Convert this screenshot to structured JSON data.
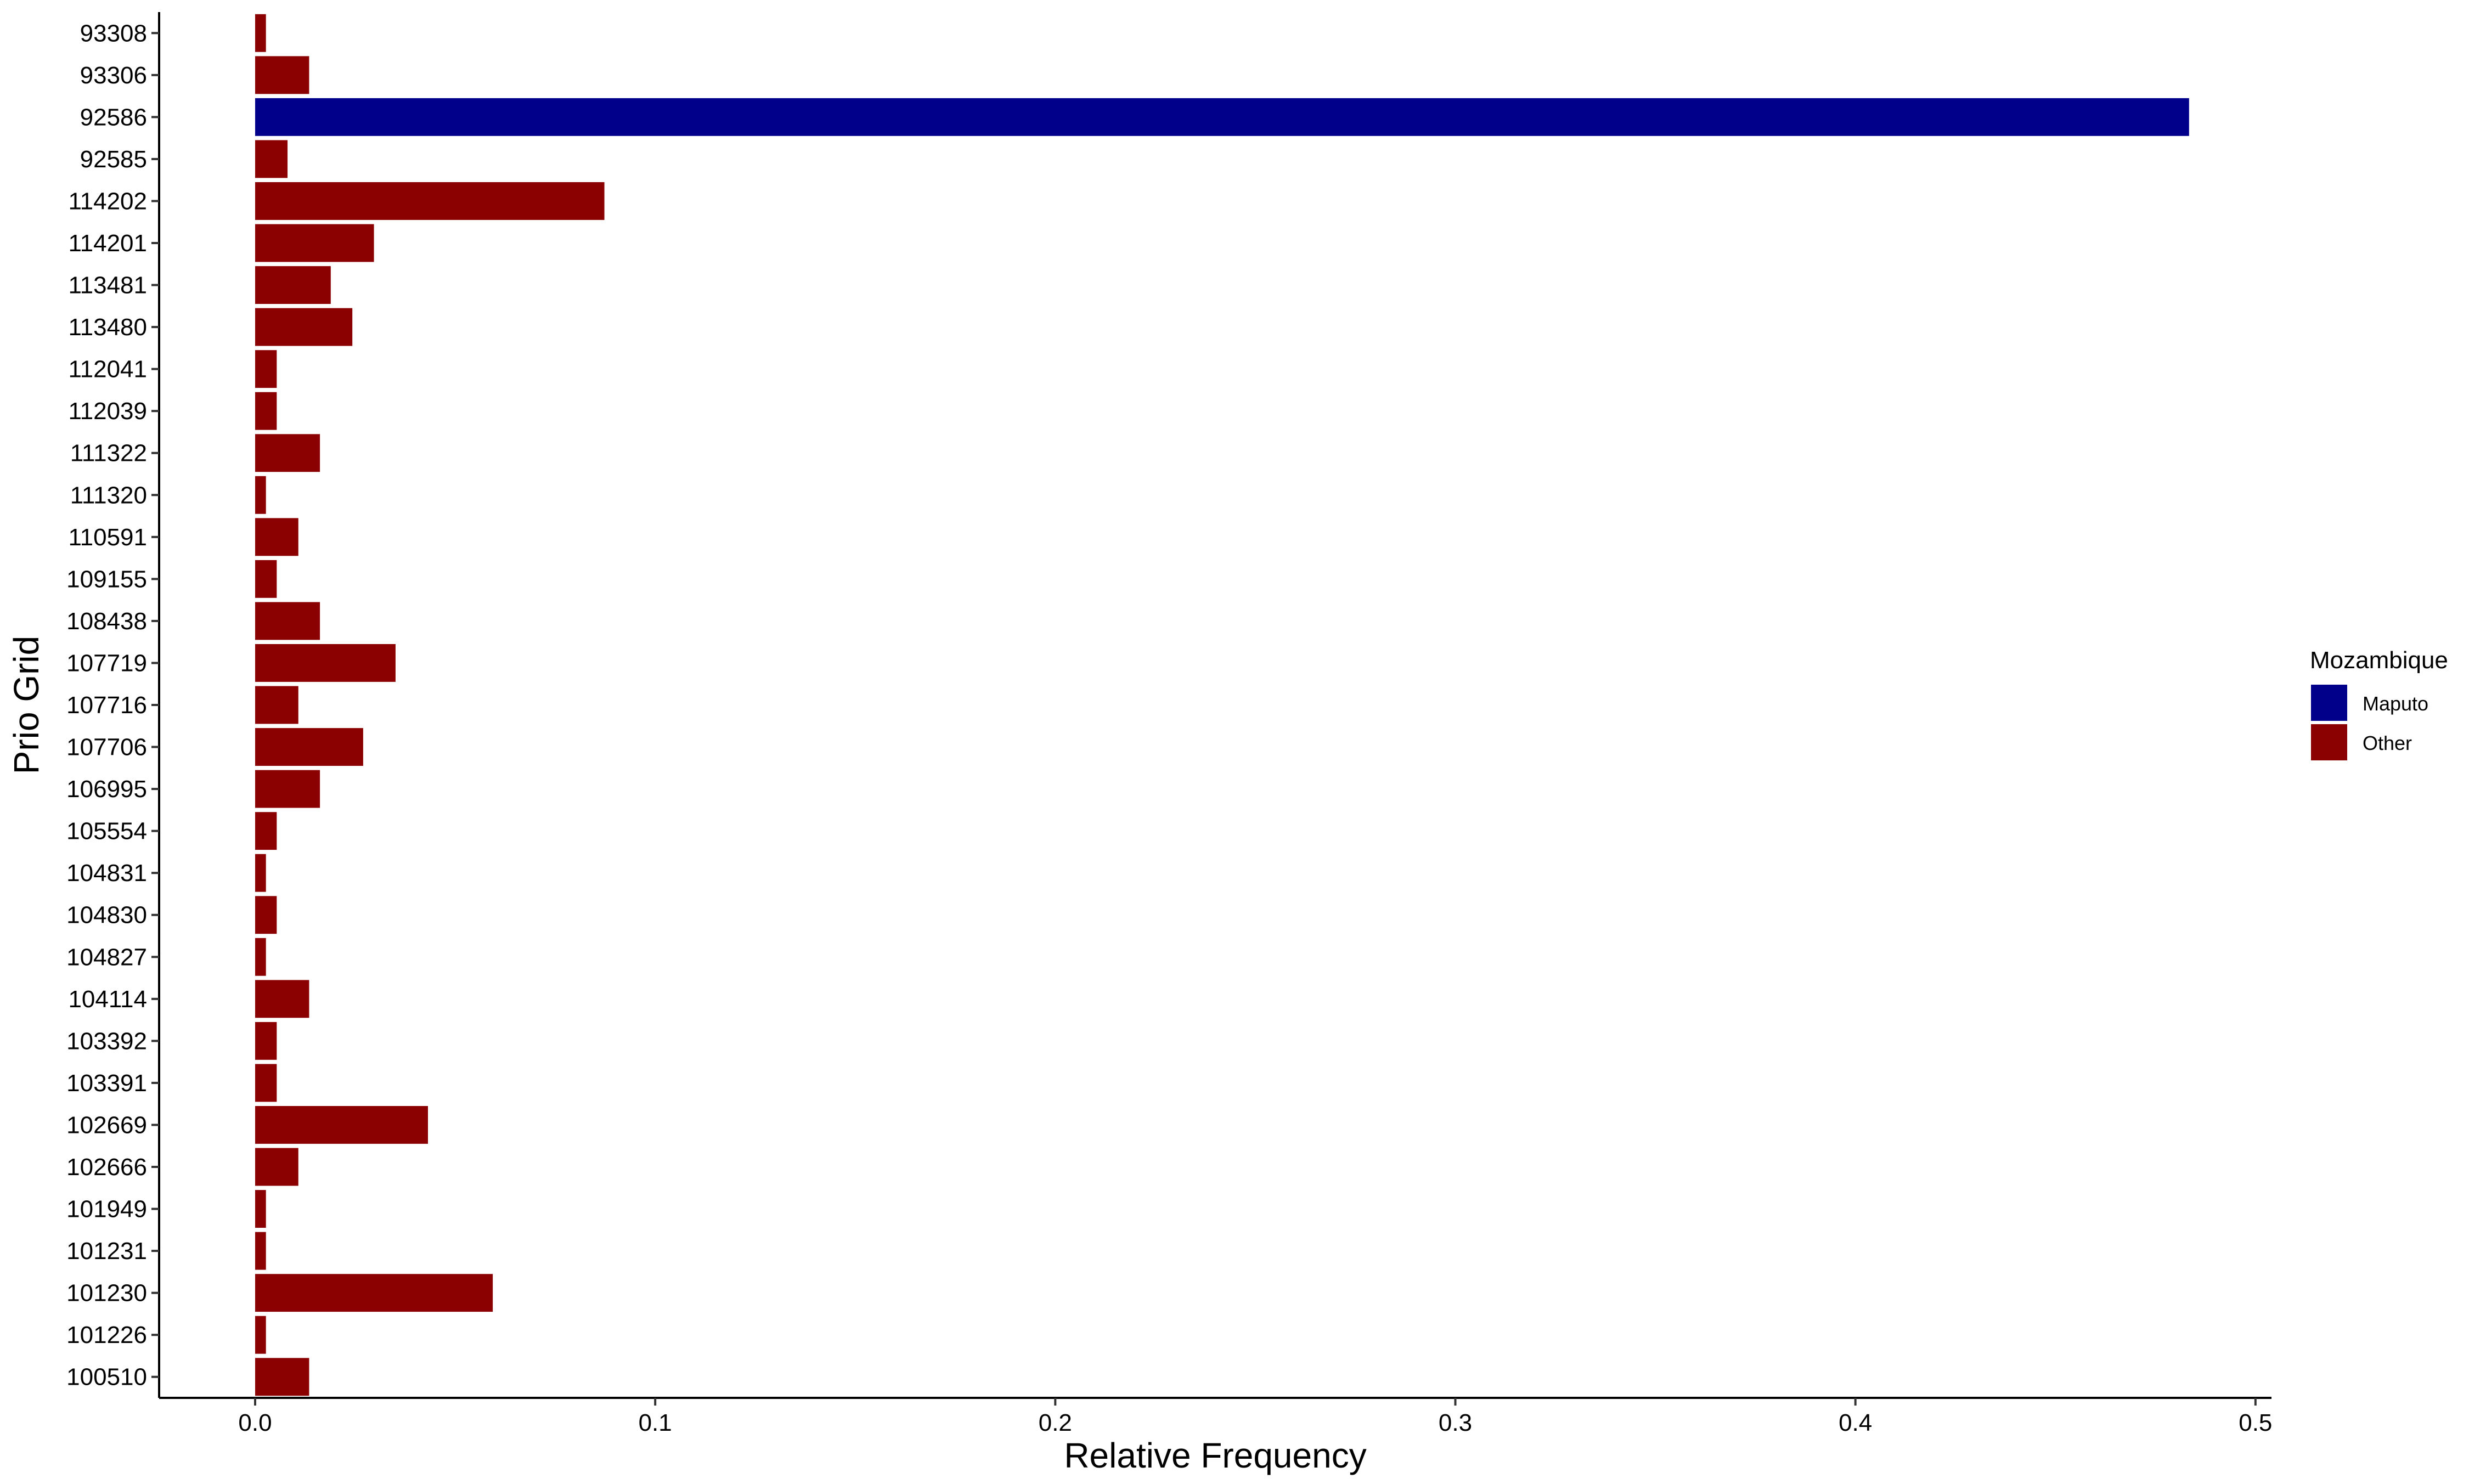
{
  "chart_data": {
    "type": "bar",
    "orientation": "horizontal",
    "title": "",
    "xlabel": "Relative Frequency",
    "ylabel": "Prio Grid",
    "xlim": [
      -0.024,
      0.504
    ],
    "xticks": [
      0.0,
      0.1,
      0.2,
      0.3,
      0.4,
      0.5
    ],
    "xtick_labels": [
      "0.0",
      "0.1",
      "0.2",
      "0.3",
      "0.4",
      "0.5"
    ],
    "grid": false,
    "legend": {
      "title": "Mozambique",
      "position": "right",
      "entries": [
        {
          "label": "Maputo",
          "color": "#00008b"
        },
        {
          "label": "Other",
          "color": "#8b0000"
        }
      ]
    },
    "categories": [
      "93308",
      "93306",
      "92586",
      "92585",
      "114202",
      "114201",
      "113481",
      "113480",
      "112041",
      "112039",
      "111322",
      "111320",
      "110591",
      "109155",
      "108438",
      "107719",
      "107716",
      "107706",
      "106995",
      "105554",
      "104831",
      "104830",
      "104827",
      "104114",
      "103392",
      "103391",
      "102669",
      "102666",
      "101949",
      "101231",
      "101230",
      "101226",
      "100510"
    ],
    "values": [
      0.0027,
      0.0135,
      0.4834,
      0.0081,
      0.0873,
      0.0297,
      0.0189,
      0.0243,
      0.0054,
      0.0054,
      0.0162,
      0.0027,
      0.0108,
      0.0054,
      0.0162,
      0.0351,
      0.0108,
      0.027,
      0.0162,
      0.0054,
      0.0027,
      0.0054,
      0.0027,
      0.0135,
      0.0054,
      0.0054,
      0.0432,
      0.0108,
      0.0027,
      0.0027,
      0.0594,
      0.0027,
      0.0135
    ],
    "groups": [
      "Other",
      "Other",
      "Maputo",
      "Other",
      "Other",
      "Other",
      "Other",
      "Other",
      "Other",
      "Other",
      "Other",
      "Other",
      "Other",
      "Other",
      "Other",
      "Other",
      "Other",
      "Other",
      "Other",
      "Other",
      "Other",
      "Other",
      "Other",
      "Other",
      "Other",
      "Other",
      "Other",
      "Other",
      "Other",
      "Other",
      "Other",
      "Other",
      "Other"
    ]
  }
}
